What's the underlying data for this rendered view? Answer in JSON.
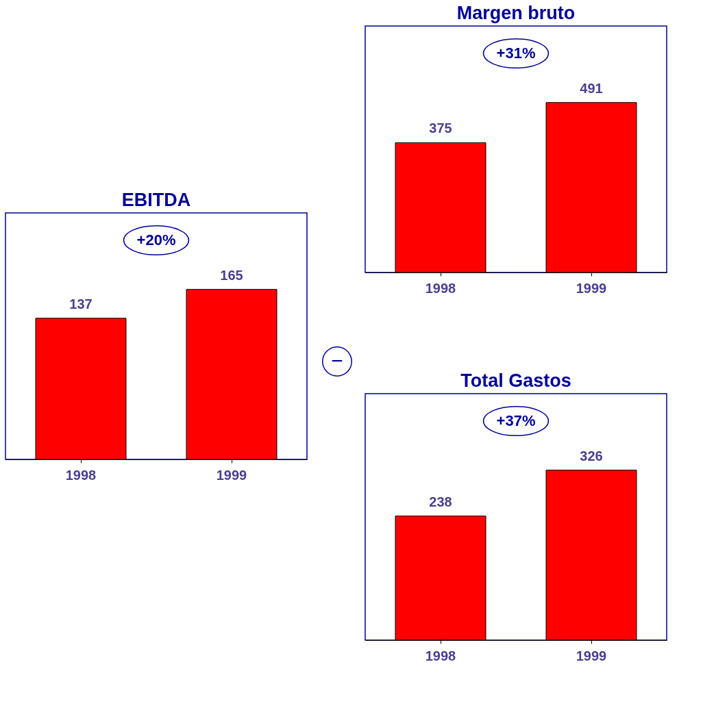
{
  "chart_data": [
    {
      "type": "bar",
      "title": "EBITDA",
      "categories": [
        "1998",
        "1999"
      ],
      "values": [
        137,
        165
      ],
      "color": "#ff0000",
      "data_labels": true,
      "annotations": [
        "+20%"
      ]
    },
    {
      "type": "other",
      "annotations": [
        "−"
      ]
    },
    {
      "type": "bar",
      "title": "Margen bruto",
      "categories": [
        "1998",
        "1999"
      ],
      "values": [
        375,
        491
      ],
      "color": "#ff0000",
      "data_labels": true,
      "annotations": [
        "+31%"
      ]
    },
    {
      "type": "bar",
      "title": "Total Gastos",
      "categories": [
        "1998",
        "1999"
      ],
      "values": [
        238,
        326
      ],
      "color": "#ff0000",
      "data_labels": true,
      "annotations": [
        "+37%"
      ]
    }
  ]
}
